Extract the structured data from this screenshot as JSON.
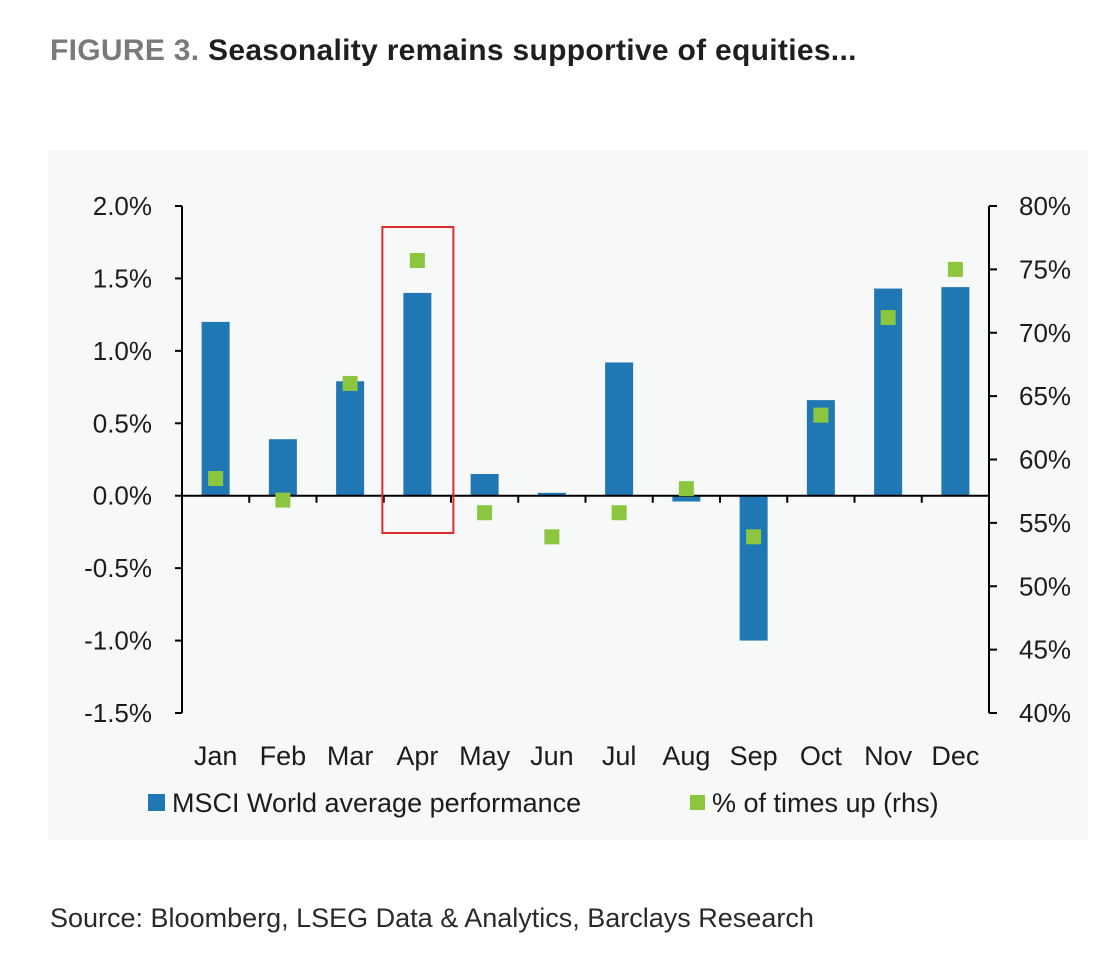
{
  "header": {
    "figure_label": "FIGURE 3.",
    "title": "Seasonality remains supportive of equities..."
  },
  "source": "Source: Bloomberg, LSEG Data & Analytics, Barclays Research",
  "colors": {
    "bar": "#1f78b4",
    "marker": "#8cc63f",
    "highlight": "#e02b2b",
    "axis": "#000000"
  },
  "chart_data": {
    "type": "bar",
    "categories": [
      "Jan",
      "Feb",
      "Mar",
      "Apr",
      "May",
      "Jun",
      "Jul",
      "Aug",
      "Sep",
      "Oct",
      "Nov",
      "Dec"
    ],
    "series": [
      {
        "name": "MSCI World average performance",
        "type": "bar",
        "axis": "left",
        "values": [
          1.2,
          0.39,
          0.79,
          1.4,
          0.15,
          0.02,
          0.92,
          -0.04,
          -1.0,
          0.66,
          1.43,
          1.44
        ]
      },
      {
        "name": "% of times up (rhs)",
        "type": "scatter",
        "axis": "right",
        "values": [
          58.5,
          56.8,
          66.0,
          75.7,
          55.8,
          53.9,
          55.8,
          57.7,
          53.9,
          63.5,
          71.2,
          75.0
        ]
      }
    ],
    "y_left": {
      "ylim": [
        -1.5,
        2.0
      ],
      "ticks": [
        2.0,
        1.5,
        1.0,
        0.5,
        0.0,
        -0.5,
        -1.0,
        -1.5
      ],
      "tick_labels": [
        "2.0%",
        "1.5%",
        "1.0%",
        "0.5%",
        "0.0%",
        "-0.5%",
        "-1.0%",
        "-1.5%"
      ]
    },
    "y_right": {
      "ylim": [
        40,
        80
      ],
      "ticks": [
        80,
        75,
        70,
        65,
        60,
        55,
        50,
        45,
        40
      ],
      "tick_labels": [
        "80%",
        "75%",
        "70%",
        "65%",
        "60%",
        "55%",
        "50%",
        "45%",
        "40%"
      ]
    },
    "highlight_category": "Apr",
    "legend": {
      "position": "bottom",
      "entries": [
        "MSCI World average performance",
        "% of times up (rhs)"
      ]
    }
  }
}
